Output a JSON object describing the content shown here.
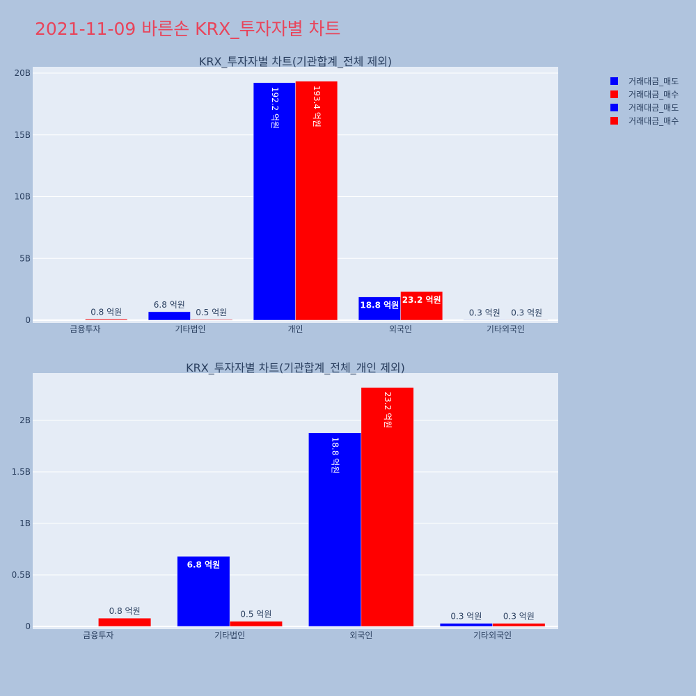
{
  "page": {
    "title": "2021-11-09 바른손 KRX_투자자별 차트"
  },
  "colors": {
    "sell": "#0000ff",
    "buy": "#ff0000",
    "plot_bg": "#e5ecf6",
    "page_bg": "#b0c4de",
    "title": "#e8445a",
    "axis_text": "#2a3f5f"
  },
  "legend": [
    {
      "label": "거래대금_매도",
      "color": "#0000ff"
    },
    {
      "label": "거래대금_매수",
      "color": "#ff0000"
    },
    {
      "label": "거래대금_매도",
      "color": "#0000ff"
    },
    {
      "label": "거래대금_매수",
      "color": "#ff0000"
    }
  ],
  "chart_data": [
    {
      "type": "bar",
      "title": "KRX_투자자별 차트(기관합계_전체 제외)",
      "categories": [
        "금융투자",
        "기타법인",
        "개인",
        "외국인",
        "기타외국인"
      ],
      "series": [
        {
          "name": "거래대금_매도",
          "color": "#0000ff",
          "values": [
            0,
            680000000,
            19220000000,
            1880000000,
            30000000
          ],
          "labels": [
            "",
            "6.8 억원",
            "192.2 억원",
            "18.8 억원",
            "0.3 억원"
          ]
        },
        {
          "name": "거래대금_매수",
          "color": "#ff0000",
          "values": [
            80000000,
            50000000,
            19340000000,
            2320000000,
            30000000
          ],
          "labels": [
            "0.8 억원",
            "0.5 억원",
            "193.4 억원",
            "23.2 억원",
            "0.3 억원"
          ]
        }
      ],
      "yticks": [
        0,
        5000000000,
        10000000000,
        15000000000,
        20000000000
      ],
      "ytick_labels": [
        "0",
        "5B",
        "10B",
        "15B",
        "20B"
      ],
      "ylim": [
        0,
        20500000000
      ],
      "legend": "top-right outside plot"
    },
    {
      "type": "bar",
      "title": "KRX_투자자별 차트(기관합계_전체_개인 제외)",
      "categories": [
        "금융투자",
        "기타법인",
        "외국인",
        "기타외국인"
      ],
      "series": [
        {
          "name": "거래대금_매도",
          "color": "#0000ff",
          "values": [
            0,
            680000000,
            1880000000,
            30000000
          ],
          "labels": [
            "",
            "6.8 억원",
            "18.8 억원",
            "0.3 억원"
          ]
        },
        {
          "name": "거래대금_매수",
          "color": "#ff0000",
          "values": [
            80000000,
            50000000,
            2320000000,
            30000000
          ],
          "labels": [
            "0.8 억원",
            "0.5 억원",
            "23.2 억원",
            "0.3 억원"
          ]
        }
      ],
      "yticks": [
        0,
        500000000,
        1000000000,
        1500000000,
        2000000000
      ],
      "ytick_labels": [
        "0",
        "0.5B",
        "1B",
        "1.5B",
        "2B"
      ],
      "ylim": [
        0,
        2450000000
      ],
      "legend": "top-right outside plot"
    }
  ]
}
